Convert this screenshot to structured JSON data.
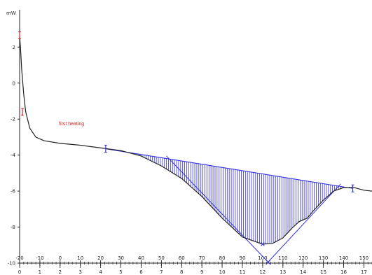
{
  "chart_data": {
    "type": "line",
    "title": "",
    "y_unit_label": "mW",
    "annotation": "first heating",
    "ylim": [
      -10,
      3.8
    ],
    "yticks": [
      2,
      0,
      -2,
      -4,
      -6,
      -8,
      -10
    ],
    "ytick_labels": [
      "2",
      "0",
      "-2",
      "-4",
      "-6",
      "-8",
      "-10"
    ],
    "temperature_axis": {
      "range": [
        -20,
        154
      ],
      "ticks": [
        -20,
        -10,
        0,
        10,
        20,
        30,
        40,
        50,
        60,
        70,
        80,
        90,
        100,
        110,
        120,
        130,
        140,
        150
      ],
      "labels": [
        "-20",
        "-10",
        "0",
        "10",
        "20",
        "30",
        "40",
        "50",
        "60",
        "70",
        "80",
        "90",
        "100",
        "110",
        "120",
        "130",
        "140",
        "150"
      ]
    },
    "time_axis": {
      "range": [
        0,
        17.5
      ],
      "ticks": [
        0,
        1,
        2,
        3,
        4,
        5,
        6,
        7,
        8,
        9,
        10,
        11,
        12,
        13,
        14,
        15,
        16,
        17
      ],
      "labels": [
        "0",
        "1",
        "2",
        "3",
        "4",
        "5",
        "6",
        "7",
        "8",
        "9",
        "10",
        "11",
        "12",
        "13",
        "14",
        "15",
        "16",
        "17"
      ]
    },
    "series": [
      {
        "color": "#222222",
        "points": [
          [
            -20,
            2.6
          ],
          [
            -19.6,
            2.0
          ],
          [
            -19,
            0.8
          ],
          [
            -18,
            -0.6
          ],
          [
            -17,
            -1.6
          ],
          [
            -15,
            -2.5
          ],
          [
            -12,
            -3.0
          ],
          [
            -8,
            -3.2
          ],
          [
            0,
            -3.35
          ],
          [
            10,
            -3.45
          ],
          [
            20,
            -3.6
          ],
          [
            30,
            -3.75
          ],
          [
            40,
            -4.05
          ],
          [
            50,
            -4.6
          ],
          [
            60,
            -5.3
          ],
          [
            70,
            -6.3
          ],
          [
            80,
            -7.5
          ],
          [
            90,
            -8.55
          ],
          [
            100,
            -8.95
          ],
          [
            105,
            -8.9
          ],
          [
            110,
            -8.6
          ],
          [
            115,
            -8.0
          ],
          [
            118,
            -7.7
          ],
          [
            122,
            -7.5
          ],
          [
            125,
            -7.1
          ],
          [
            130,
            -6.5
          ],
          [
            135,
            -6.0
          ],
          [
            140,
            -5.8
          ],
          [
            145,
            -5.8
          ],
          [
            150,
            -5.95
          ],
          [
            154,
            -6.0
          ]
        ]
      }
    ],
    "baseline": {
      "from": [
        22.5,
        -3.65
      ],
      "to": [
        144.5,
        -5.85
      ],
      "color": "#3333dd"
    },
    "markers": [
      {
        "x": 22.5,
        "y": -3.65,
        "color": "#3333dd"
      },
      {
        "x": 144.5,
        "y": -5.85,
        "color": "#3333dd"
      },
      {
        "x": -20,
        "y": 2.65,
        "color": "#e02020"
      },
      {
        "x": -18.6,
        "y": -1.6,
        "color": "#e02020"
      }
    ],
    "tangents": [
      {
        "from": [
          52.5,
          -4.05
        ],
        "to": [
          103.2,
          -10.0
        ],
        "color": "#3333dd"
      },
      {
        "from": [
          102.2,
          -10.0
        ],
        "to": [
          138.5,
          -5.6
        ],
        "color": "#3333dd"
      }
    ],
    "peak_marker": {
      "x": 100,
      "y": -8.95
    },
    "intersection_marker": {
      "x": 102.7,
      "y": -9.95
    },
    "fill": {
      "from_x": 22.5,
      "to_x": 144.5,
      "color": "#3333dd"
    },
    "grid": false,
    "legend": "none"
  }
}
